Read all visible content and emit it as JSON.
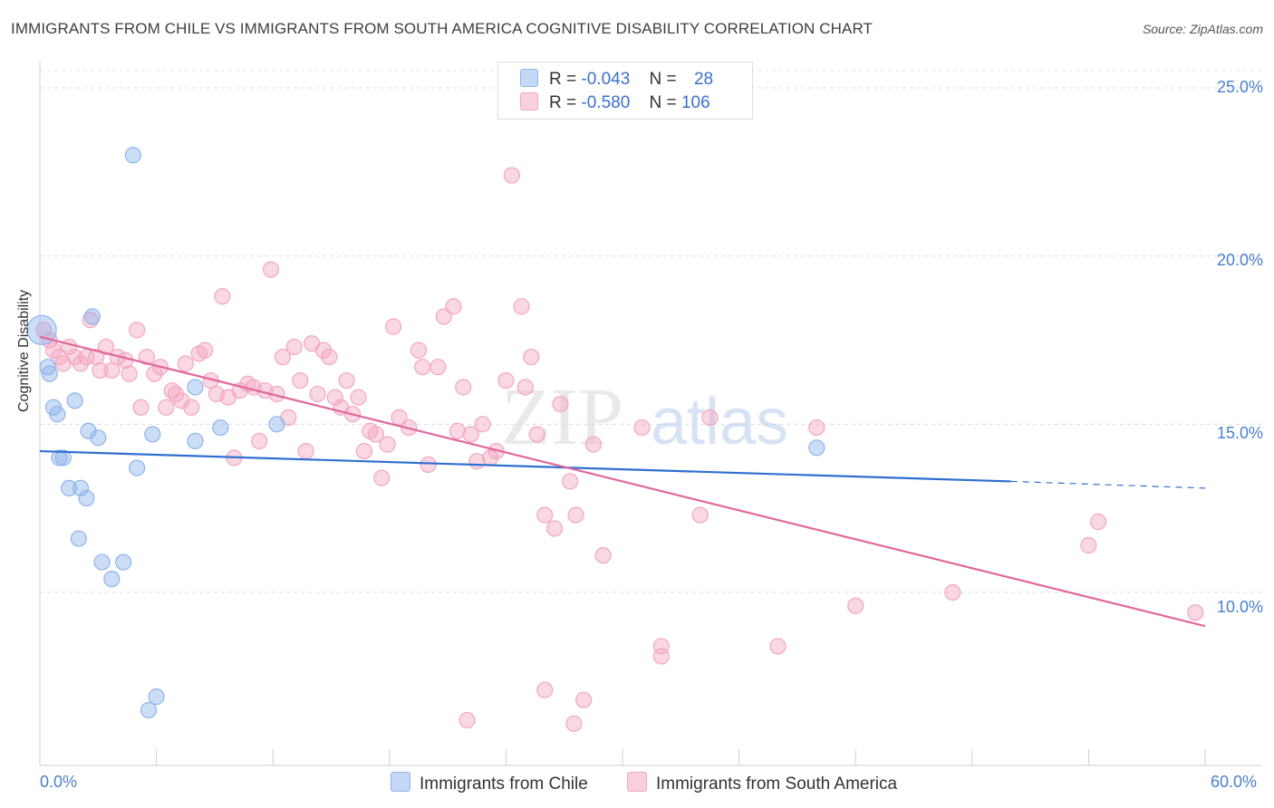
{
  "title": "IMMIGRANTS FROM CHILE VS IMMIGRANTS FROM SOUTH AMERICA COGNITIVE DISABILITY CORRELATION CHART",
  "source": "Source: ZipAtlas.com",
  "watermark": {
    "zip": "ZIP",
    "atlas": "atlas"
  },
  "legend": {
    "rows": [
      {
        "r_label": "R =",
        "r_value": "-0.043",
        "n_label": "N =",
        "n_value": "28"
      },
      {
        "r_label": "R =",
        "r_value": "-0.580",
        "n_label": "N =",
        "n_value": "106"
      }
    ]
  },
  "bottom_legend": {
    "chile": "Immigrants from Chile",
    "south_america": "Immigrants from South America"
  },
  "chart_data": {
    "type": "scatter",
    "title": "IMMIGRANTS FROM CHILE VS IMMIGRANTS FROM SOUTH AMERICA COGNITIVE DISABILITY CORRELATION CHART",
    "xlabel": "",
    "ylabel": "Cognitive Disability",
    "xlim": [
      0,
      60
    ],
    "ylim": [
      5,
      26
    ],
    "x_tick_labels": [
      "0.0%",
      "60.0%"
    ],
    "y_ticks": [
      10,
      15,
      20,
      25
    ],
    "y_tick_labels": [
      "10.0%",
      "15.0%",
      "20.0%",
      "25.0%"
    ],
    "colors": {
      "chile": "#8fb4ec",
      "chile_line": "#2f6fd0",
      "sa": "#f2a7c0",
      "sa_line": "#e0689a"
    },
    "series": [
      {
        "name": "Immigrants from Chile",
        "r": -0.043,
        "n": 28,
        "trend": {
          "x0": 0,
          "y0": 14.2,
          "x1": 50,
          "y1": 13.3,
          "dash_x1": 60,
          "dash_y1": 13.1
        },
        "points": [
          [
            0.1,
            17.8
          ],
          [
            0.4,
            16.7
          ],
          [
            0.5,
            16.5
          ],
          [
            0.7,
            15.5
          ],
          [
            0.9,
            15.3
          ],
          [
            1.0,
            14.0
          ],
          [
            1.2,
            14.0
          ],
          [
            1.5,
            13.1
          ],
          [
            1.8,
            15.7
          ],
          [
            2.0,
            11.6
          ],
          [
            2.1,
            13.1
          ],
          [
            2.4,
            12.8
          ],
          [
            2.5,
            14.8
          ],
          [
            2.7,
            18.2
          ],
          [
            3.0,
            14.6
          ],
          [
            3.2,
            10.9
          ],
          [
            3.7,
            10.4
          ],
          [
            4.3,
            10.9
          ],
          [
            4.8,
            23.0
          ],
          [
            5.0,
            13.7
          ],
          [
            5.6,
            6.5
          ],
          [
            5.8,
            14.7
          ],
          [
            6.0,
            6.9
          ],
          [
            8.0,
            16.1
          ],
          [
            8.0,
            14.5
          ],
          [
            9.3,
            14.9
          ],
          [
            12.2,
            15.0
          ],
          [
            40.0,
            14.3
          ]
        ]
      },
      {
        "name": "Immigrants from South America",
        "r": -0.58,
        "n": 106,
        "trend": {
          "x0": 0,
          "y0": 17.6,
          "x1": 60,
          "y1": 9.0
        },
        "points": [
          [
            0.2,
            17.8
          ],
          [
            0.5,
            17.5
          ],
          [
            0.7,
            17.2
          ],
          [
            1.0,
            17.0
          ],
          [
            1.2,
            16.8
          ],
          [
            1.5,
            17.3
          ],
          [
            1.8,
            17.0
          ],
          [
            2.1,
            16.8
          ],
          [
            2.4,
            17.0
          ],
          [
            2.6,
            18.1
          ],
          [
            2.9,
            17.0
          ],
          [
            3.1,
            16.6
          ],
          [
            3.4,
            17.3
          ],
          [
            3.7,
            16.6
          ],
          [
            4.0,
            17.0
          ],
          [
            4.4,
            16.9
          ],
          [
            4.6,
            16.5
          ],
          [
            5.0,
            17.8
          ],
          [
            5.2,
            15.5
          ],
          [
            5.5,
            17.0
          ],
          [
            5.9,
            16.5
          ],
          [
            6.2,
            16.7
          ],
          [
            6.5,
            15.5
          ],
          [
            6.8,
            16.0
          ],
          [
            7.0,
            15.9
          ],
          [
            7.3,
            15.7
          ],
          [
            7.5,
            16.8
          ],
          [
            7.8,
            15.5
          ],
          [
            8.2,
            17.1
          ],
          [
            8.5,
            17.2
          ],
          [
            8.8,
            16.3
          ],
          [
            9.1,
            15.9
          ],
          [
            9.4,
            18.8
          ],
          [
            9.7,
            15.8
          ],
          [
            10.0,
            14.0
          ],
          [
            10.3,
            16.0
          ],
          [
            10.7,
            16.2
          ],
          [
            11.0,
            16.1
          ],
          [
            11.3,
            14.5
          ],
          [
            11.6,
            16.0
          ],
          [
            11.9,
            19.6
          ],
          [
            12.2,
            15.9
          ],
          [
            12.5,
            17.0
          ],
          [
            12.8,
            15.2
          ],
          [
            13.1,
            17.3
          ],
          [
            13.4,
            16.3
          ],
          [
            13.7,
            14.2
          ],
          [
            14.0,
            17.4
          ],
          [
            14.3,
            15.9
          ],
          [
            14.6,
            17.2
          ],
          [
            14.9,
            17.0
          ],
          [
            15.2,
            15.8
          ],
          [
            15.5,
            15.5
          ],
          [
            15.8,
            16.3
          ],
          [
            16.1,
            15.3
          ],
          [
            16.4,
            15.8
          ],
          [
            16.7,
            14.2
          ],
          [
            17.0,
            14.8
          ],
          [
            17.3,
            14.7
          ],
          [
            17.6,
            13.4
          ],
          [
            17.9,
            14.4
          ],
          [
            18.2,
            17.9
          ],
          [
            18.5,
            15.2
          ],
          [
            19.0,
            14.9
          ],
          [
            19.5,
            17.2
          ],
          [
            19.7,
            16.7
          ],
          [
            20.0,
            13.8
          ],
          [
            20.5,
            16.7
          ],
          [
            20.8,
            18.2
          ],
          [
            21.3,
            18.5
          ],
          [
            21.5,
            14.8
          ],
          [
            21.8,
            16.1
          ],
          [
            22.2,
            14.7
          ],
          [
            22.5,
            13.9
          ],
          [
            22.8,
            15.0
          ],
          [
            23.2,
            14.0
          ],
          [
            23.5,
            14.2
          ],
          [
            24.0,
            16.3
          ],
          [
            24.3,
            22.4
          ],
          [
            24.8,
            18.5
          ],
          [
            25.0,
            16.1
          ],
          [
            25.3,
            17.0
          ],
          [
            25.6,
            14.7
          ],
          [
            26.0,
            12.3
          ],
          [
            26.5,
            11.9
          ],
          [
            26.8,
            15.6
          ],
          [
            27.3,
            13.3
          ],
          [
            27.6,
            12.3
          ],
          [
            28.5,
            14.4
          ],
          [
            29.0,
            11.1
          ],
          [
            31.0,
            14.9
          ],
          [
            32.0,
            8.1
          ],
          [
            32.0,
            8.4
          ],
          [
            34.5,
            15.2
          ],
          [
            34.0,
            12.3
          ],
          [
            38.0,
            8.4
          ],
          [
            40.0,
            14.9
          ],
          [
            42.0,
            9.6
          ],
          [
            47.0,
            10.0
          ],
          [
            54.0,
            11.4
          ],
          [
            54.5,
            12.1
          ],
          [
            59.5,
            9.4
          ],
          [
            22.0,
            6.2
          ],
          [
            26.0,
            7.1
          ],
          [
            27.5,
            6.1
          ],
          [
            28.0,
            6.8
          ]
        ]
      }
    ]
  }
}
